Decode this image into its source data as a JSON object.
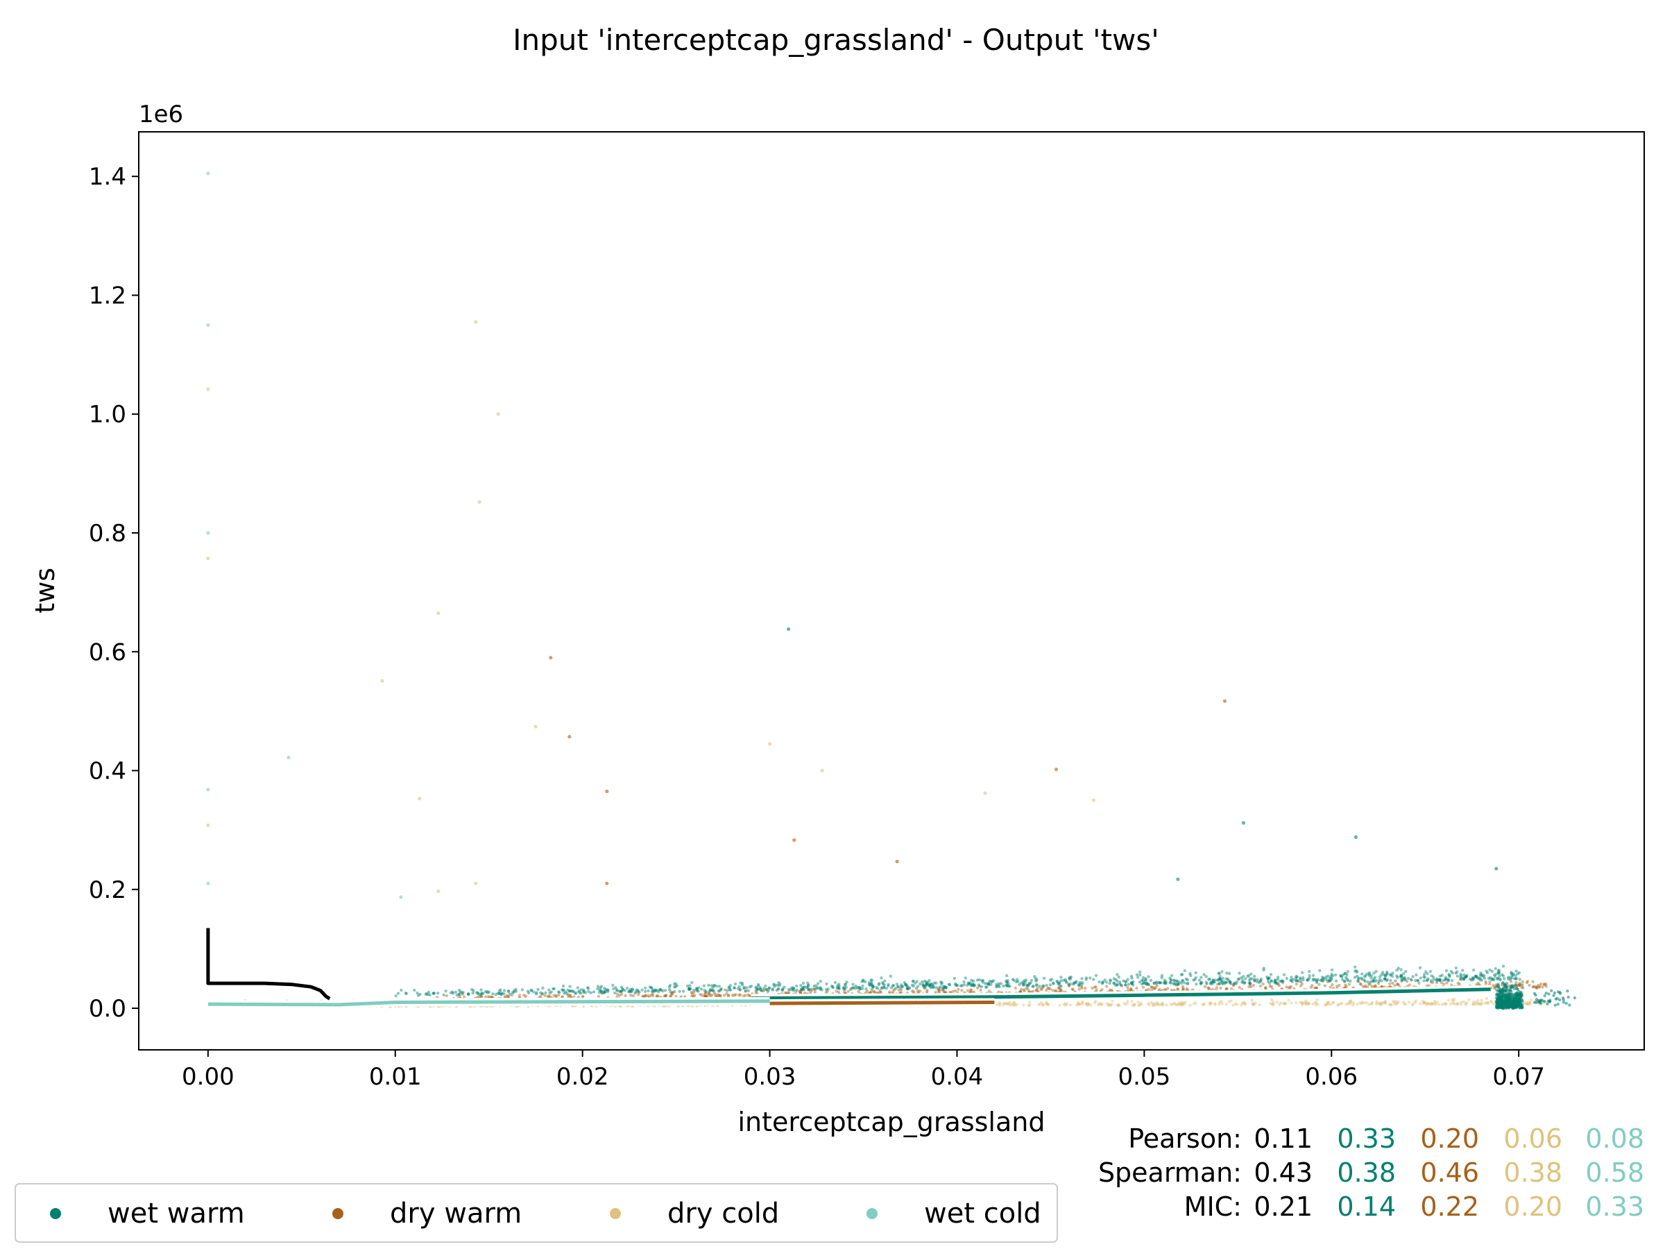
{
  "chart_data": {
    "type": "scatter",
    "title": "Input 'interceptcap_grassland' - Output 'tws'",
    "xlabel": "interceptcap_grassland",
    "ylabel": "tws",
    "y_offset_label": "1e6",
    "xlim": [
      -0.0037,
      0.0767
    ],
    "ylim": [
      -70000,
      1475000
    ],
    "x_ticks": [
      0.0,
      0.01,
      0.02,
      0.03,
      0.04,
      0.05,
      0.06,
      0.07
    ],
    "x_tick_labels": [
      "0.00",
      "0.01",
      "0.02",
      "0.03",
      "0.04",
      "0.05",
      "0.06",
      "0.07"
    ],
    "y_ticks": [
      0,
      200000,
      400000,
      600000,
      800000,
      1000000,
      1200000,
      1400000
    ],
    "y_tick_labels": [
      "0.0",
      "0.2",
      "0.4",
      "0.6",
      "0.8",
      "1.0",
      "1.2",
      "1.4"
    ],
    "grid": false,
    "legend_position": "bottom-left, below plot",
    "series": [
      {
        "name": "wet warm",
        "color": "#01806e",
        "trend": [
          [
            0.029,
            17000
          ],
          [
            0.042,
            19000
          ],
          [
            0.05,
            22000
          ],
          [
            0.06,
            26000
          ],
          [
            0.0685,
            32000
          ]
        ]
      },
      {
        "name": "dry warm",
        "color": "#a6611a",
        "trend": [
          [
            0.029,
            8000
          ],
          [
            0.042,
            10000
          ]
        ]
      },
      {
        "name": "dry cold",
        "color": "#dfc27d",
        "trend": []
      },
      {
        "name": "wet cold",
        "color": "#80cdc1",
        "trend": [
          [
            0.0,
            7000
          ],
          [
            0.007,
            6000
          ],
          [
            0.01,
            10000
          ],
          [
            0.02,
            11000
          ],
          [
            0.03,
            12000
          ]
        ]
      }
    ],
    "overall_trend": {
      "color": "#000000",
      "points": [
        [
          0.0,
          135000
        ],
        [
          0.0,
          42000
        ],
        [
          0.003,
          42000
        ],
        [
          0.0045,
          40000
        ],
        [
          0.0055,
          36000
        ],
        [
          0.006,
          30000
        ],
        [
          0.0063,
          20000
        ],
        [
          0.0065,
          16000
        ]
      ]
    },
    "notable_points": [
      {
        "x": 0.0,
        "y": 1405000,
        "series": "wet cold"
      },
      {
        "x": 0.0,
        "y": 1150000,
        "series": "wet cold"
      },
      {
        "x": 0.0,
        "y": 1042000,
        "series": "dry cold"
      },
      {
        "x": 0.0,
        "y": 800000,
        "series": "wet cold"
      },
      {
        "x": 0.0,
        "y": 757000,
        "series": "dry cold"
      },
      {
        "x": 0.0,
        "y": 368000,
        "series": "wet cold"
      },
      {
        "x": 0.0,
        "y": 308000,
        "series": "dry cold"
      },
      {
        "x": 0.0,
        "y": 210000,
        "series": "wet cold"
      },
      {
        "x": 0.0143,
        "y": 1155000,
        "series": "dry cold"
      },
      {
        "x": 0.0155,
        "y": 1000000,
        "series": "dry cold"
      },
      {
        "x": 0.0145,
        "y": 852000,
        "series": "dry cold"
      },
      {
        "x": 0.0043,
        "y": 422000,
        "series": "wet cold"
      },
      {
        "x": 0.0123,
        "y": 665000,
        "series": "dry cold"
      },
      {
        "x": 0.0183,
        "y": 590000,
        "series": "dry warm"
      },
      {
        "x": 0.031,
        "y": 638000,
        "series": "wet warm"
      },
      {
        "x": 0.0093,
        "y": 551000,
        "series": "dry cold"
      },
      {
        "x": 0.0175,
        "y": 474000,
        "series": "dry cold"
      },
      {
        "x": 0.0193,
        "y": 457000,
        "series": "dry warm"
      },
      {
        "x": 0.03,
        "y": 445000,
        "series": "dry cold"
      },
      {
        "x": 0.0328,
        "y": 400000,
        "series": "dry cold"
      },
      {
        "x": 0.0213,
        "y": 365000,
        "series": "dry warm"
      },
      {
        "x": 0.0113,
        "y": 353000,
        "series": "dry cold"
      },
      {
        "x": 0.0543,
        "y": 517000,
        "series": "dry warm"
      },
      {
        "x": 0.0453,
        "y": 402000,
        "series": "dry warm"
      },
      {
        "x": 0.0473,
        "y": 350000,
        "series": "dry cold"
      },
      {
        "x": 0.0415,
        "y": 362000,
        "series": "dry cold"
      },
      {
        "x": 0.0553,
        "y": 312000,
        "series": "wet warm"
      },
      {
        "x": 0.0313,
        "y": 283000,
        "series": "dry warm"
      },
      {
        "x": 0.0368,
        "y": 247000,
        "series": "dry warm"
      },
      {
        "x": 0.0613,
        "y": 288000,
        "series": "wet warm"
      },
      {
        "x": 0.0213,
        "y": 210000,
        "series": "dry warm"
      },
      {
        "x": 0.0143,
        "y": 210000,
        "series": "dry cold"
      },
      {
        "x": 0.0688,
        "y": 235000,
        "series": "wet warm"
      },
      {
        "x": 0.0518,
        "y": 217000,
        "series": "wet warm"
      },
      {
        "x": 0.0123,
        "y": 197000,
        "series": "dry cold"
      },
      {
        "x": 0.0103,
        "y": 187000,
        "series": "wet cold"
      }
    ],
    "stats": {
      "labels": [
        "Pearson:",
        "Spearman:",
        "MIC:"
      ],
      "overall": [
        "0.11",
        "0.43",
        "0.21"
      ],
      "wet_warm": [
        "0.33",
        "0.38",
        "0.14"
      ],
      "dry_warm": [
        "0.20",
        "0.46",
        "0.22"
      ],
      "dry_cold": [
        "0.06",
        "0.38",
        "0.20"
      ],
      "wet_cold": [
        "0.08",
        "0.58",
        "0.33"
      ]
    }
  }
}
